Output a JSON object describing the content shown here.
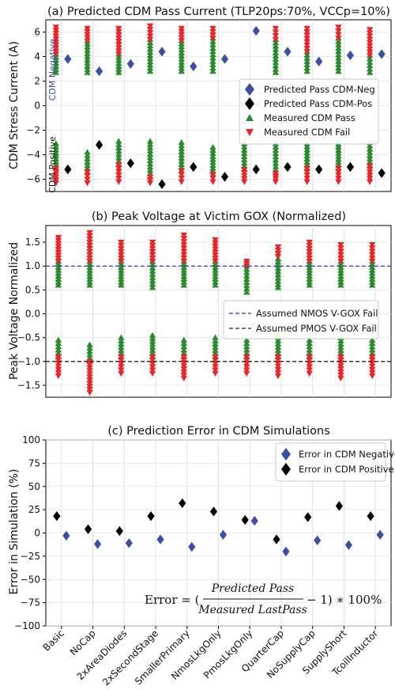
{
  "colors": {
    "neg": "#3b4fa6",
    "pos": "#000000",
    "pass": "#2a8a2e",
    "fail": "#e8262a",
    "nmos_line": "#3333cc",
    "pmos_line": "#222222"
  },
  "categories": [
    "Basic",
    "NoCap",
    "2xAreaDiodes",
    "2xSecondStage",
    "SmallerPrimary",
    "NmosLkgOnly",
    "PmosLkgOnly",
    "QuarterCap",
    "NoSupplyCap",
    "SupplyShort",
    "TcoilInductor"
  ],
  "chart_data": [
    {
      "type": "scatter",
      "title": "(a) Predicted CDM Pass Current (TLP20ps:70%, VCCp=10%)",
      "ylabel": "CDM Stress Current (A)",
      "ylim": [
        -7,
        7
      ],
      "yticks": [
        -6,
        -4,
        -2,
        0,
        2,
        4,
        6
      ],
      "ytick_labels": [
        "−6",
        "−4",
        "−2",
        "0",
        "2",
        "4",
        "6"
      ],
      "annotations": {
        "neg": "CDM Negative",
        "pos": "CDM Positive"
      },
      "legend": [
        "Predicted Pass CDM-Neg",
        "Predicted Pass CDM-Pos",
        "Measured CDM Pass",
        "Measured CDM Fail"
      ],
      "legend_position": "right",
      "series": [
        {
          "name": "Predicted Pass CDM-Neg",
          "values": [
            3.8,
            2.8,
            3.4,
            4.4,
            3.2,
            3.8,
            6.1,
            4.4,
            3.6,
            4.1,
            4.2
          ]
        },
        {
          "name": "Predicted Pass CDM-Pos",
          "values": [
            -5.2,
            -3.2,
            -4.7,
            -6.4,
            -5.0,
            -5.8,
            -5.2,
            -5.0,
            -5.2,
            -5.0,
            -5.5
          ]
        },
        {
          "name": "Measured CDM Pass",
          "ranges": [
            [
              2.7,
              4.2
            ],
            [
              2.7,
              5.3
            ],
            [
              2.7,
              4.2
            ],
            [
              2.8,
              5.4
            ],
            [
              2.8,
              5.3
            ],
            [
              2.8,
              5.5
            ],
            [
              null,
              null
            ],
            [
              2.7,
              5.4
            ],
            [
              2.8,
              4.4
            ],
            [
              2.8,
              5.5
            ],
            [
              2.7,
              4.1
            ],
            [
              -5.1,
              -3.1
            ],
            [
              -5.4,
              -3.8
            ],
            [
              -4.8,
              -2.9
            ],
            [
              -5.8,
              -2.9
            ],
            [
              -5.3,
              -3.0
            ],
            [
              -5.6,
              -3.4
            ],
            [
              -5.2,
              -3.1
            ],
            [
              -5.5,
              -3.1
            ],
            [
              -5.1,
              -3.1
            ],
            [
              -5.1,
              -2.9
            ],
            [
              -4.9,
              -3.0
            ]
          ]
        },
        {
          "name": "Measured CDM Fail",
          "ranges": [
            [
              4.2,
              6.4
            ],
            [
              5.3,
              6.3
            ],
            [
              4.2,
              6.3
            ],
            [
              5.4,
              6.5
            ],
            [
              5.3,
              6.3
            ],
            [
              5.5,
              6.3
            ],
            [
              null,
              null
            ],
            [
              5.4,
              6.3
            ],
            [
              4.4,
              6.3
            ],
            [
              5.5,
              6.4
            ],
            [
              4.1,
              6.2
            ],
            [
              -6.3,
              -5.1
            ],
            [
              -6.3,
              -5.4
            ],
            [
              -6.2,
              -4.8
            ],
            [
              -6.3,
              -5.8
            ],
            [
              -6.2,
              -5.3
            ],
            [
              -6.2,
              -5.6
            ],
            [
              -6.2,
              -5.2
            ],
            [
              -6.2,
              -5.5
            ],
            [
              -6.2,
              -5.1
            ],
            [
              -6.2,
              -5.1
            ],
            [
              -6.2,
              -4.9
            ]
          ]
        }
      ]
    },
    {
      "type": "scatter",
      "title": "(b) Peak Voltage at Victim GOX (Normalized)",
      "ylabel": "Peak Voltage Normalized",
      "ylim": [
        -1.75,
        1.85
      ],
      "yticks": [
        -1.5,
        -1.0,
        -0.5,
        0.0,
        0.5,
        1.0,
        1.5
      ],
      "ytick_labels": [
        "−1.5",
        "−1.0",
        "−0.5",
        "0.0",
        "0.5",
        "1.0",
        "1.5"
      ],
      "legend": [
        "Assumed NMOS V-GOX Fail",
        "Assumed PMOS V-GOX Fail"
      ],
      "legend_position": "right",
      "hlines": [
        {
          "name": "Assumed NMOS V-GOX Fail",
          "y": 1.0
        },
        {
          "name": "Assumed PMOS V-GOX Fail",
          "y": -1.0
        }
      ],
      "series": [
        {
          "name": "Pass",
          "ranges": [
            [
              0.6,
              1.1
            ],
            [
              0.6,
              1.1
            ],
            [
              0.6,
              1.1
            ],
            [
              0.55,
              1.1
            ],
            [
              0.6,
              1.1
            ],
            [
              0.6,
              1.1
            ],
            [
              0.45,
              1.0
            ],
            [
              0.55,
              1.15
            ],
            [
              0.6,
              1.1
            ],
            [
              0.6,
              1.1
            ],
            [
              0.6,
              1.1
            ],
            [
              -0.9,
              -0.55
            ],
            [
              -1.0,
              -0.65
            ],
            [
              -0.9,
              -0.5
            ],
            [
              -0.9,
              -0.45
            ],
            [
              -0.9,
              -0.55
            ],
            [
              -0.9,
              -0.5
            ],
            [
              -0.9,
              -0.55
            ],
            [
              -0.9,
              -0.5
            ],
            [
              -0.9,
              -0.55
            ],
            [
              -0.9,
              -0.5
            ],
            [
              -0.9,
              -0.55
            ]
          ]
        },
        {
          "name": "Fail",
          "ranges": [
            [
              1.1,
              1.6
            ],
            [
              1.1,
              1.7
            ],
            [
              1.1,
              1.5
            ],
            [
              1.1,
              1.5
            ],
            [
              1.1,
              1.65
            ],
            [
              1.1,
              1.55
            ],
            [
              1.0,
              1.1
            ],
            [
              1.2,
              1.4
            ],
            [
              1.1,
              1.5
            ],
            [
              1.1,
              1.45
            ],
            [
              1.1,
              1.45
            ],
            [
              -1.3,
              -0.9
            ],
            [
              -1.65,
              -1.0
            ],
            [
              -1.25,
              -0.9
            ],
            [
              -1.25,
              -0.9
            ],
            [
              -1.35,
              -0.9
            ],
            [
              -1.25,
              -0.9
            ],
            [
              -1.25,
              -0.9
            ],
            [
              -1.3,
              -0.9
            ],
            [
              -1.25,
              -0.9
            ],
            [
              -1.35,
              -0.9
            ],
            [
              -1.3,
              -0.9
            ]
          ]
        }
      ]
    },
    {
      "type": "scatter",
      "title": "(c) Prediction Error in CDM Simulations",
      "ylabel": "Error in Simulation (%)",
      "ylim": [
        -100,
        100
      ],
      "yticks": [
        -100,
        -75,
        -50,
        -25,
        0,
        25,
        50,
        75,
        100
      ],
      "ytick_labels": [
        "−100",
        "−75",
        "−50",
        "−25",
        "0",
        "25",
        "50",
        "75",
        "100"
      ],
      "legend": [
        "Error in CDM Negative",
        "Error in CDM Positive"
      ],
      "legend_position": "top-right",
      "formula": {
        "lhs": "Error = (",
        "num": "Predicted Pass",
        "den": "Measured LastPass",
        "rhs": "− 1) ∗ 100%"
      },
      "series": [
        {
          "name": "Error in CDM Negative",
          "values": [
            -3,
            -12,
            -11,
            -7,
            -15,
            -2,
            13,
            -20,
            -8,
            -13,
            -2
          ]
        },
        {
          "name": "Error in CDM Positive",
          "values": [
            18,
            4,
            2,
            18,
            32,
            23,
            14,
            -7,
            17,
            29,
            18
          ]
        }
      ]
    }
  ]
}
